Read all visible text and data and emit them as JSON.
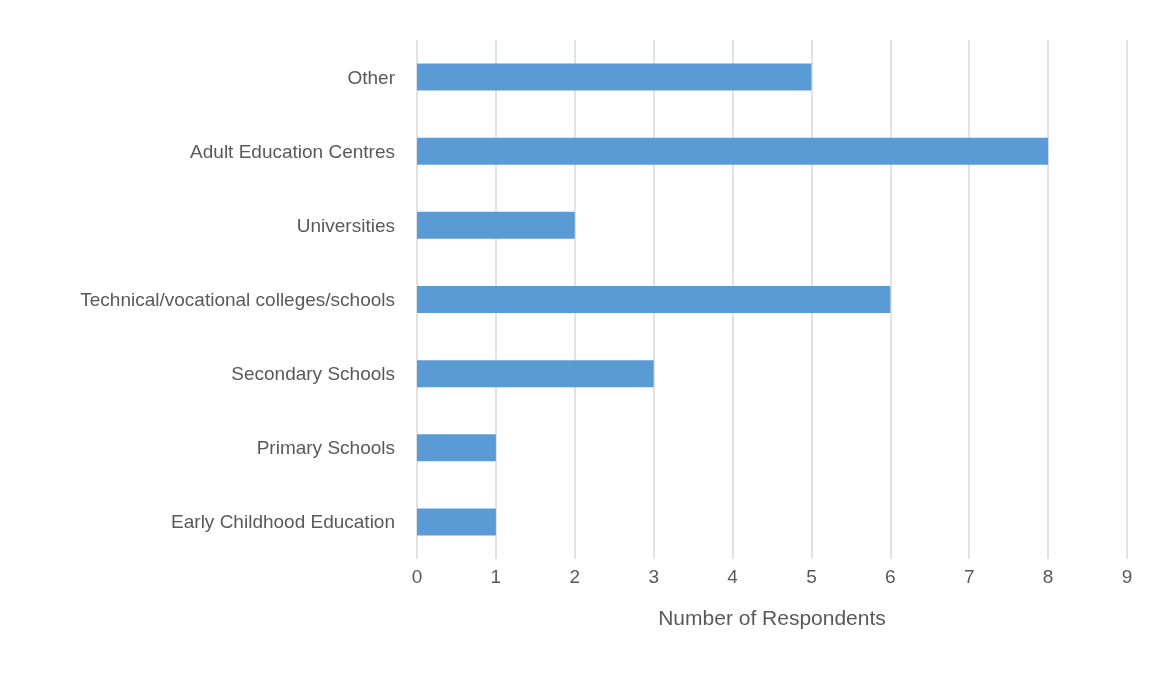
{
  "chart_data": {
    "type": "bar",
    "orientation": "horizontal",
    "xlabel": "Number of Respondents",
    "categories": [
      "Other",
      "Adult Education Centres",
      "Universities",
      "Technical/vocational colleges/schools",
      "Secondary Schools",
      "Primary Schools",
      "Early Childhood Education"
    ],
    "values": [
      5,
      8,
      2,
      6,
      3,
      1,
      1
    ],
    "color": "#5b9bd5",
    "xlim": [
      0,
      9
    ],
    "xticks": [
      0,
      1,
      2,
      3,
      4,
      5,
      6,
      7,
      8,
      9
    ],
    "grid": "x"
  }
}
